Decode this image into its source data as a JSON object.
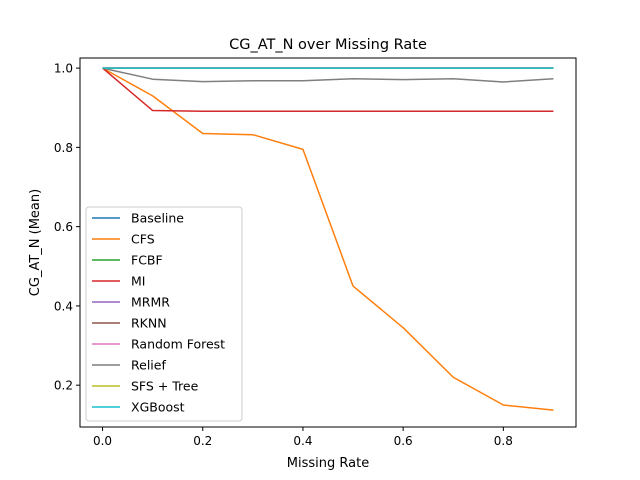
{
  "chart_data": {
    "type": "line",
    "title": "CG_AT_N over Missing Rate",
    "xlabel": "Missing Rate",
    "ylabel": "CG_AT_N (Mean)",
    "xlim": [
      -0.045,
      0.945
    ],
    "ylim": [
      0.0945,
      1.0255
    ],
    "xticks": [
      0.0,
      0.2,
      0.4,
      0.6,
      0.8
    ],
    "xtick_labels": [
      "0.0",
      "0.2",
      "0.4",
      "0.6",
      "0.8"
    ],
    "yticks": [
      0.2,
      0.4,
      0.6,
      0.8,
      1.0
    ],
    "ytick_labels": [
      "0.2",
      "0.4",
      "0.6",
      "0.8",
      "1.0"
    ],
    "grid": false,
    "legend_position": "lower-left",
    "x": [
      0.0,
      0.1,
      0.2,
      0.3,
      0.4,
      0.5,
      0.6,
      0.7,
      0.8,
      0.9
    ],
    "series": [
      {
        "name": "Baseline",
        "color": "#1f77b4",
        "values": [
          1.0,
          1.0,
          1.0,
          1.0,
          1.0,
          1.0,
          1.0,
          1.0,
          1.0,
          1.0
        ]
      },
      {
        "name": "CFS",
        "color": "#ff7f0e",
        "values": [
          1.0,
          0.93,
          0.835,
          0.832,
          0.795,
          0.45,
          0.345,
          0.22,
          0.15,
          0.137
        ]
      },
      {
        "name": "FCBF",
        "color": "#2ca02c",
        "values": [
          1.0,
          1.0,
          1.0,
          1.0,
          1.0,
          1.0,
          1.0,
          1.0,
          1.0,
          1.0
        ]
      },
      {
        "name": "MI",
        "color": "#d62728",
        "values": [
          1.0,
          0.893,
          0.891,
          0.891,
          0.891,
          0.891,
          0.891,
          0.891,
          0.891,
          0.891
        ]
      },
      {
        "name": "MRMR",
        "color": "#9467bd",
        "values": [
          1.0,
          1.0,
          1.0,
          1.0,
          1.0,
          1.0,
          1.0,
          1.0,
          1.0,
          1.0
        ]
      },
      {
        "name": "RKNN",
        "color": "#8c564b",
        "values": [
          1.0,
          1.0,
          1.0,
          1.0,
          1.0,
          1.0,
          1.0,
          1.0,
          1.0,
          1.0
        ]
      },
      {
        "name": "Random Forest",
        "color": "#e377c2",
        "values": [
          1.0,
          1.0,
          1.0,
          1.0,
          1.0,
          1.0,
          1.0,
          1.0,
          1.0,
          1.0
        ]
      },
      {
        "name": "Relief",
        "color": "#7f7f7f",
        "values": [
          1.0,
          0.972,
          0.966,
          0.968,
          0.968,
          0.973,
          0.971,
          0.973,
          0.965,
          0.973
        ]
      },
      {
        "name": "SFS + Tree",
        "color": "#bcbd22",
        "values": [
          1.0,
          1.0,
          1.0,
          1.0,
          1.0,
          1.0,
          1.0,
          1.0,
          1.0,
          1.0
        ]
      },
      {
        "name": "XGBoost",
        "color": "#17becf",
        "values": [
          1.0,
          1.0,
          1.0,
          1.0,
          1.0,
          1.0,
          1.0,
          1.0,
          1.0,
          1.0
        ]
      }
    ]
  }
}
